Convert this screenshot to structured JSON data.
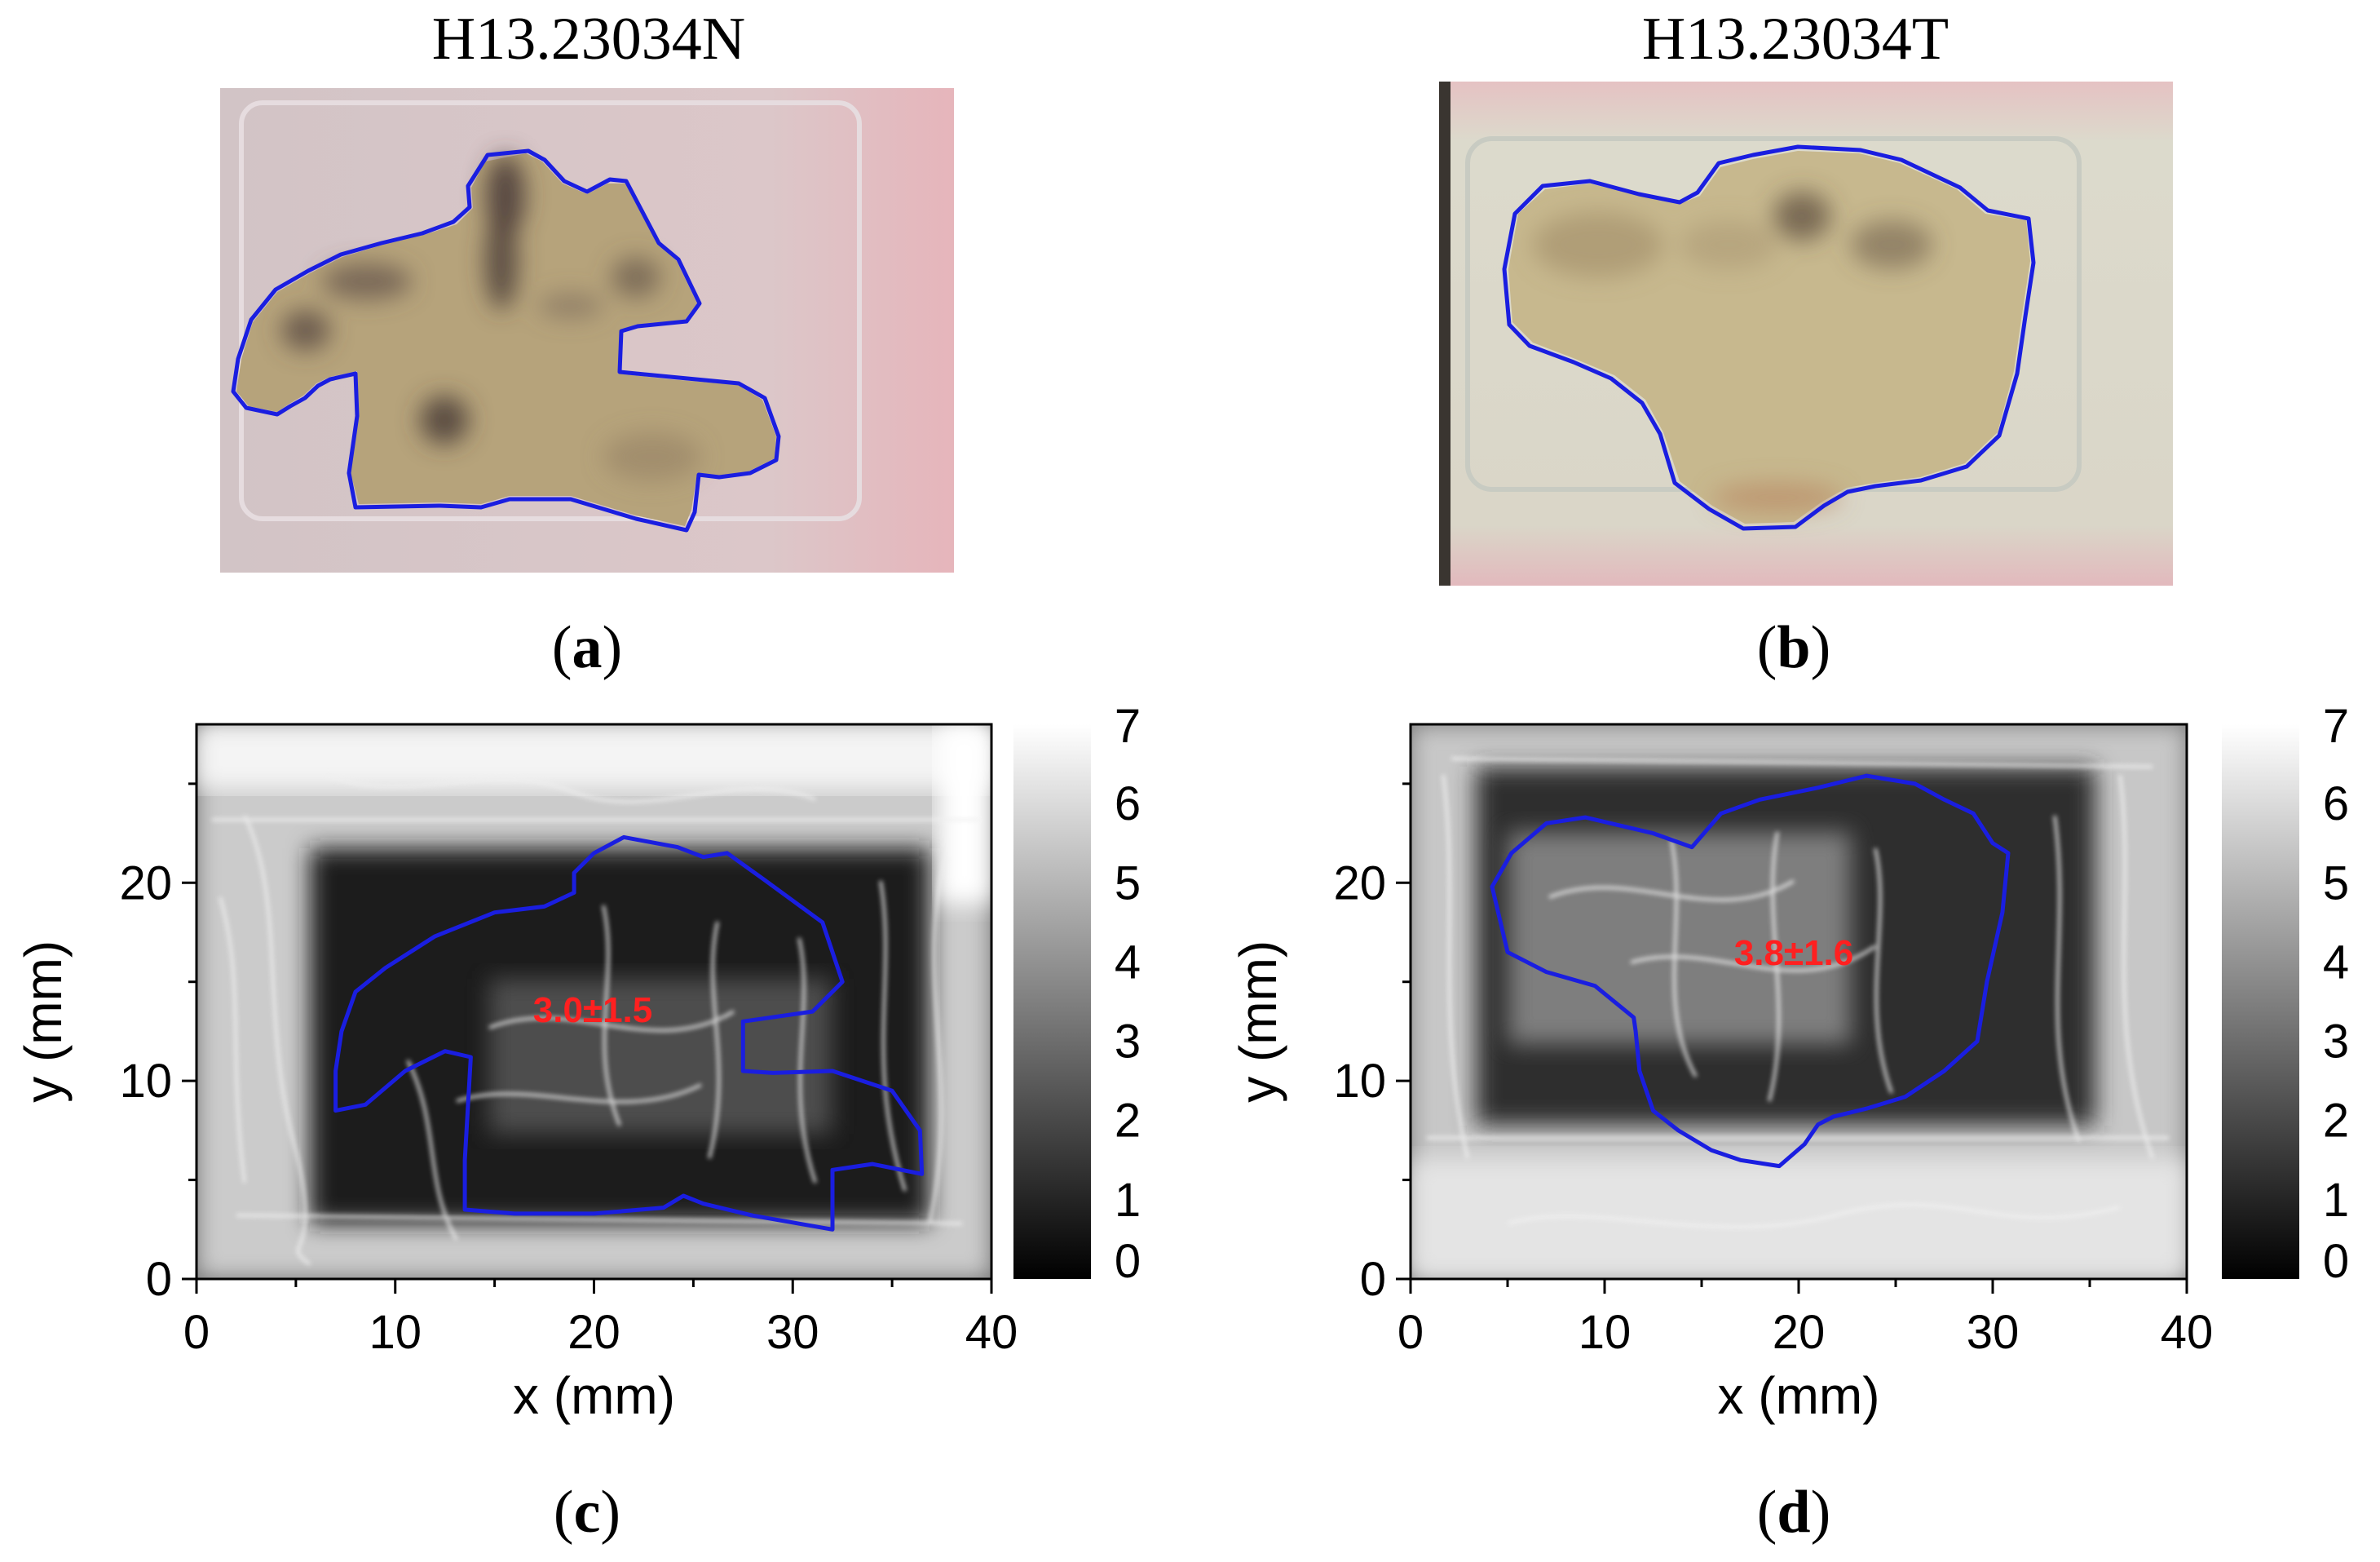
{
  "figure": {
    "panels": {
      "a": {
        "title": "H13.23034N",
        "caption": "a"
      },
      "b": {
        "title": "H13.23034T",
        "caption": "b"
      },
      "c": {
        "caption": "c"
      },
      "d": {
        "caption": "d"
      }
    },
    "colors": {
      "outline": "#1a1ee0",
      "annotation": "#ff2020",
      "slide_pink": "#d9b7b9",
      "tissue": "#b9a57e"
    }
  },
  "chart_data": [
    {
      "type": "heatmap",
      "panel": "c",
      "xlabel": "x (mm)",
      "ylabel": "y (mm)",
      "xlim": [
        0,
        40
      ],
      "ylim": [
        0,
        28
      ],
      "xticks": [
        0,
        10,
        20,
        30,
        40
      ],
      "yticks": [
        0,
        10,
        20
      ],
      "colorbar": {
        "min": 0,
        "max": 7,
        "ticks": [
          0,
          1,
          2,
          3,
          4,
          5,
          6,
          7
        ],
        "colormap": "gray"
      },
      "annotation": "3.0±1.5",
      "outline_polygon": [
        [
          7,
          8.5
        ],
        [
          8.5,
          8.8
        ],
        [
          10.5,
          10.5
        ],
        [
          12.5,
          11.5
        ],
        [
          13.8,
          11.2
        ],
        [
          13.5,
          6
        ],
        [
          13.5,
          3.5
        ],
        [
          16,
          3.3
        ],
        [
          20,
          3.3
        ],
        [
          23.5,
          3.6
        ],
        [
          24.5,
          4.2
        ],
        [
          25.5,
          3.8
        ],
        [
          28,
          3.2
        ],
        [
          32,
          2.5
        ],
        [
          32,
          5.5
        ],
        [
          34,
          5.8
        ],
        [
          36.5,
          5.3
        ],
        [
          36.4,
          7.5
        ],
        [
          35,
          9.5
        ],
        [
          32,
          10.5
        ],
        [
          29,
          10.4
        ],
        [
          27.5,
          10.5
        ],
        [
          27.5,
          13
        ],
        [
          31,
          13.5
        ],
        [
          32.5,
          15
        ],
        [
          31.5,
          18
        ],
        [
          28.5,
          20.2
        ],
        [
          26.7,
          21.5
        ],
        [
          25.5,
          21.3
        ],
        [
          24.2,
          21.8
        ],
        [
          21.5,
          22.3
        ],
        [
          20,
          21.5
        ],
        [
          19,
          20.5
        ],
        [
          19,
          19.5
        ],
        [
          17.5,
          18.8
        ],
        [
          15,
          18.5
        ],
        [
          12,
          17.3
        ],
        [
          9.5,
          15.7
        ],
        [
          8,
          14.5
        ],
        [
          7.3,
          12.5
        ],
        [
          7,
          10.5
        ]
      ]
    },
    {
      "type": "heatmap",
      "panel": "d",
      "xlabel": "x (mm)",
      "ylabel": "y (mm)",
      "xlim": [
        0,
        40
      ],
      "ylim": [
        0,
        28
      ],
      "xticks": [
        0,
        10,
        20,
        30,
        40
      ],
      "yticks": [
        0,
        10,
        20
      ],
      "colorbar": {
        "min": 0,
        "max": 7,
        "ticks": [
          0,
          1,
          2,
          3,
          4,
          5,
          6,
          7
        ],
        "colormap": "gray"
      },
      "annotation": "3.8±1.6",
      "outline_polygon": [
        [
          5.2,
          21.5
        ],
        [
          7,
          23
        ],
        [
          9,
          23.3
        ],
        [
          12.5,
          22.5
        ],
        [
          14.5,
          21.8
        ],
        [
          16,
          23.5
        ],
        [
          18,
          24.2
        ],
        [
          21,
          24.8
        ],
        [
          23.5,
          25.4
        ],
        [
          26,
          25
        ],
        [
          27.5,
          24.2
        ],
        [
          29,
          23.5
        ],
        [
          30,
          22
        ],
        [
          30.8,
          21.5
        ],
        [
          30.5,
          18.5
        ],
        [
          29.7,
          15
        ],
        [
          29.2,
          12
        ],
        [
          27.5,
          10.5
        ],
        [
          25.5,
          9.2
        ],
        [
          23.5,
          8.6
        ],
        [
          21.8,
          8.2
        ],
        [
          21,
          7.8
        ],
        [
          20.3,
          6.8
        ],
        [
          19,
          5.7
        ],
        [
          17,
          6
        ],
        [
          15.5,
          6.5
        ],
        [
          13.8,
          7.5
        ],
        [
          12.5,
          8.5
        ],
        [
          11.8,
          10.5
        ],
        [
          11.6,
          12.5
        ],
        [
          11.5,
          13.2
        ],
        [
          9.5,
          14.8
        ],
        [
          7,
          15.5
        ],
        [
          5,
          16.5
        ],
        [
          4.2,
          19.8
        ]
      ]
    }
  ]
}
